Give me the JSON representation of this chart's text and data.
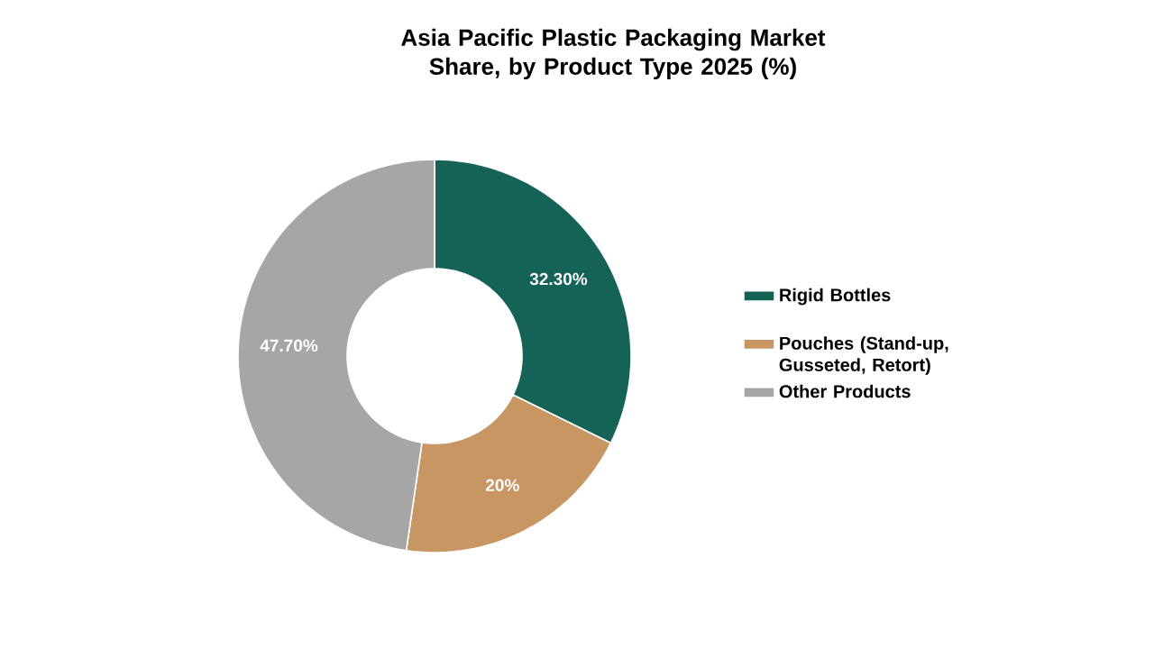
{
  "chart_data": {
    "type": "donut",
    "title": "Asia Pacific Plastic Packaging Market Share, by Product Type 2025 (%)",
    "categories": [
      "Rigid Bottles",
      "Pouches (Stand-up, Gusseted, Retort)",
      "Other Products"
    ],
    "values": [
      32.3,
      20,
      47.7
    ],
    "value_labels": [
      "32.30%",
      "20%",
      "47.70%"
    ],
    "colors": [
      "#156356",
      "#c89663",
      "#a6a6a6"
    ],
    "legend": "right"
  }
}
